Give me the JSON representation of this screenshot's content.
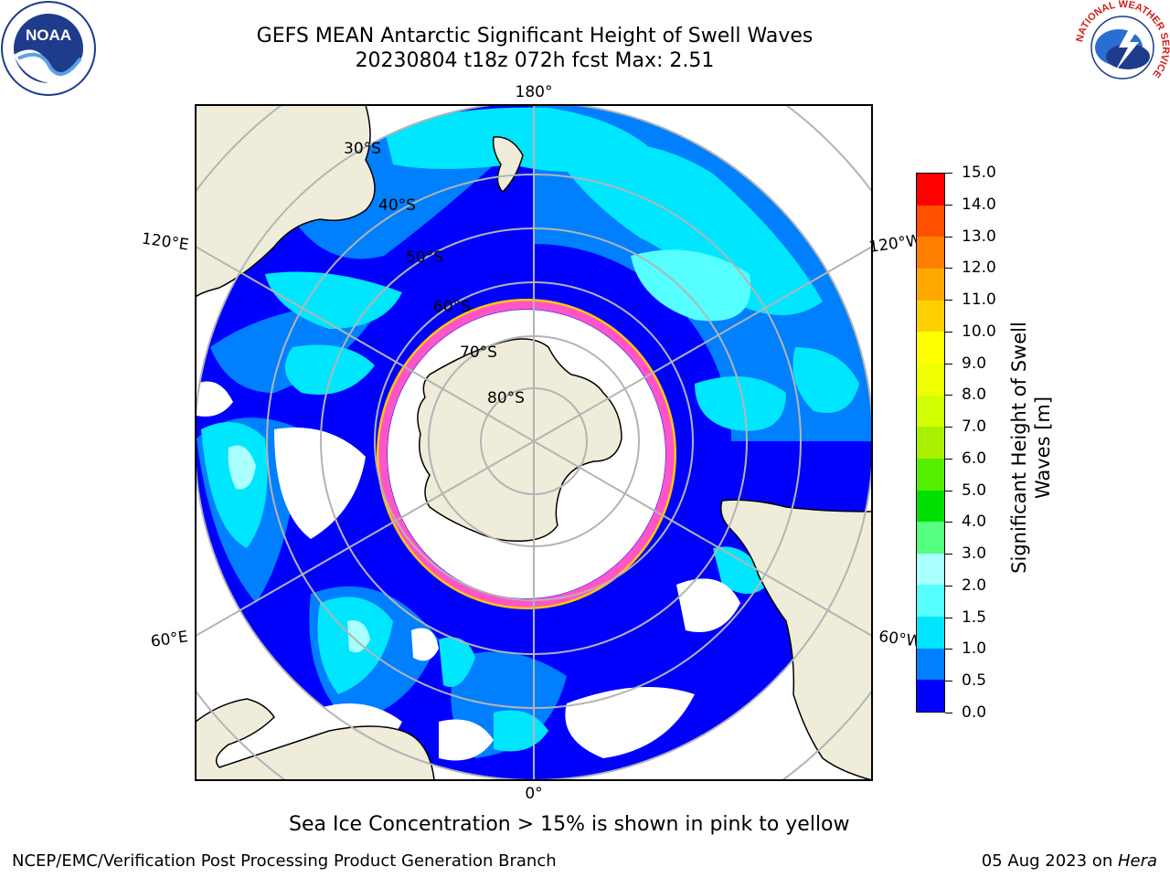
{
  "title": {
    "line1": "GEFS MEAN Antarctic Significant Height of Swell Waves",
    "line2": "20230804 t18z 072h fcst   Max: 2.51"
  },
  "map": {
    "lat_labels": [
      "30°S",
      "40°S",
      "50°S",
      "60°S",
      "70°S",
      "80°S"
    ],
    "lon_labels": {
      "top": "180°",
      "bottom": "0°",
      "left_upper": "120°E",
      "left_lower": "60°E",
      "right_upper": "120°W",
      "right_lower": "60°W"
    },
    "colors": {
      "land": "#efecda",
      "ocean_ice": "#ffffff",
      "grid": "#b4b4b4",
      "ice_edge_pink": "#ff55c8",
      "ice_edge_yellow": "#ffc800"
    }
  },
  "colorbar": {
    "title": "Significant Height of Swell Waves [m]",
    "ticks": [
      "0.0",
      "0.5",
      "1.0",
      "1.5",
      "2.0",
      "3.0",
      "4.0",
      "5.0",
      "6.0",
      "7.0",
      "8.0",
      "9.0",
      "10.0",
      "11.0",
      "12.0",
      "13.0",
      "14.0",
      "15.0"
    ],
    "colors": [
      "#0000ff",
      "#0080ff",
      "#00e6ff",
      "#55ffff",
      "#aaffff",
      "#55ff80",
      "#00e000",
      "#55f000",
      "#aaf000",
      "#d2ff00",
      "#eeff00",
      "#ffff00",
      "#ffd000",
      "#ffa800",
      "#ff8000",
      "#ff5000",
      "#ff0000"
    ]
  },
  "caption": "Sea Ice Concentration > 15% is shown in pink to yellow",
  "footer": {
    "left": "NCEP/EMC/Verification Post Processing Product Generation Branch",
    "right_date": "05 Aug 2023 on ",
    "right_machine": "Hera"
  },
  "logos": {
    "noaa": "NOAA",
    "noaa_ring": "NATIONAL OCEANIC AND ATMOSPHERIC ADMINISTRATION · U.S. DEPARTMENT OF COMMERCE",
    "nws_ring": "NATIONAL WEATHER SERVICE"
  }
}
